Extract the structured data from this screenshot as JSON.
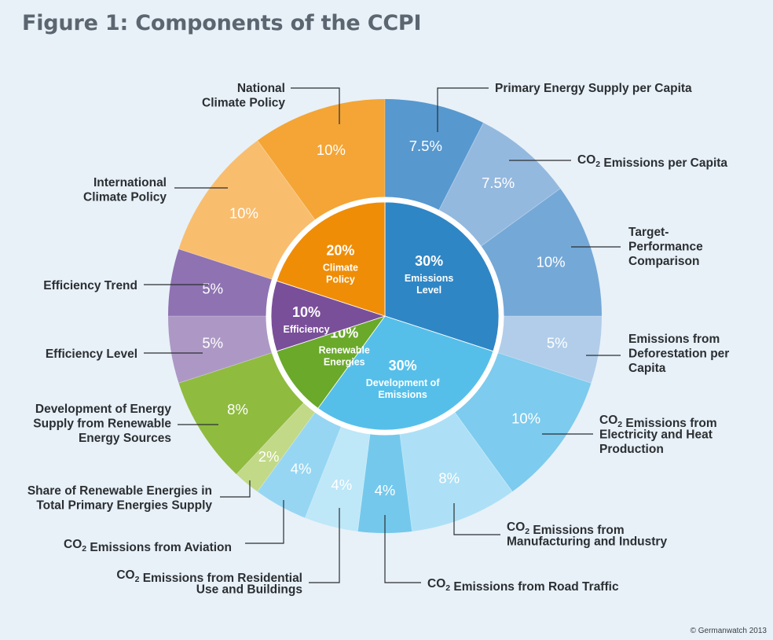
{
  "title": "Figure 1: Components of the CCPI",
  "copyright": "© Germanwatch 2013",
  "chart_data": {
    "type": "pie",
    "subtype": "two-level donut",
    "inner": [
      {
        "value": 30,
        "label": "30%",
        "name": [
          "Emissions",
          "Level"
        ],
        "color": "#2f86c5"
      },
      {
        "value": 30,
        "label": "30%",
        "name": [
          "Development of",
          "Emissions"
        ],
        "color": "#56bfe9"
      },
      {
        "value": 10,
        "label": "10%",
        "name": [
          "Renewable",
          "Energies"
        ],
        "color": "#6aa92a"
      },
      {
        "value": 10,
        "label": "10%",
        "name": [
          "Efficiency"
        ],
        "color": "#7a4f9a"
      },
      {
        "value": 20,
        "label": "20%",
        "name": [
          "Climate",
          "Policy"
        ],
        "color": "#ef8d07"
      }
    ],
    "outer": [
      {
        "value": 7.5,
        "label": "7.5%",
        "name": [
          "Primary Energy Supply per Capita"
        ],
        "color": "#5798cf"
      },
      {
        "value": 7.5,
        "label": "7.5%",
        "name": [
          "CO|2| Emissions per Capita"
        ],
        "color": "#94b9df"
      },
      {
        "value": 10,
        "label": "10%",
        "name": [
          "Target-",
          "Performance",
          "Comparison"
        ],
        "color": "#74a8d7"
      },
      {
        "value": 5,
        "label": "5%",
        "name": [
          "Emissions from",
          "Deforestation per",
          "Capita"
        ],
        "color": "#b1cdea"
      },
      {
        "value": 10,
        "label": "10%",
        "name": [
          "CO|2| Emissions from",
          "Electricity and Heat",
          "Production"
        ],
        "color": "#7dcbee"
      },
      {
        "value": 8,
        "label": "8%",
        "name": [
          "CO|2| Emissions from",
          "Manufacturing and Industry"
        ],
        "color": "#ade0f6"
      },
      {
        "value": 4,
        "label": "4%",
        "name": [
          "CO|2| Emissions from Road Traffic"
        ],
        "color": "#74c8ec"
      },
      {
        "value": 4,
        "label": "4%",
        "name": [
          "CO|2| Emissions from Residential",
          "Use and Buildings"
        ],
        "color": "#bee7f8"
      },
      {
        "value": 4,
        "label": "4%",
        "name": [
          "CO|2| Emissions from Aviation"
        ],
        "color": "#96d6f3"
      },
      {
        "value": 2,
        "label": "2%",
        "name": [
          "Share of Renewable Energies in",
          "Total Primary Energies Supply"
        ],
        "color": "#c2d987"
      },
      {
        "value": 8,
        "label": "8%",
        "name": [
          "Development of Energy",
          "Supply from Renewable",
          "Energy Sources"
        ],
        "color": "#8fbb3f"
      },
      {
        "value": 5,
        "label": "5%",
        "name": [
          "Efficiency Level"
        ],
        "color": "#ad98c5"
      },
      {
        "value": 5,
        "label": "5%",
        "name": [
          "Efficiency Trend"
        ],
        "color": "#8e72b2"
      },
      {
        "value": 10,
        "label": "10%",
        "name": [
          "International",
          "Climate Policy"
        ],
        "color": "#f9bd6e"
      },
      {
        "value": 10,
        "label": "10%",
        "name": [
          "National",
          "Climate Policy"
        ],
        "color": "#f4a535"
      }
    ]
  }
}
